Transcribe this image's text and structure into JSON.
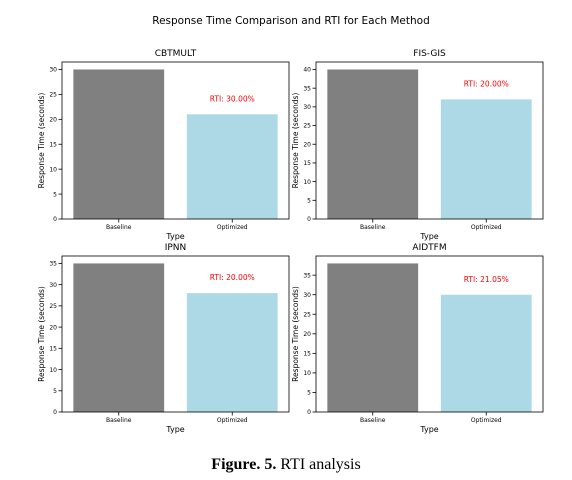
{
  "figure": {
    "suptitle": "Response Time Comparison and RTI for Each Method",
    "caption_label": "Figure. 5.",
    "caption_text": " RTI analysis"
  },
  "colors": {
    "baseline": "#808080",
    "optimized": "#add8e6",
    "annotation": "#ff0000"
  },
  "chart_data": [
    {
      "type": "bar",
      "title": "CBTMULT",
      "categories": [
        "Baseline",
        "Optimized"
      ],
      "values": [
        30,
        21
      ],
      "xlabel": "Type",
      "ylabel": "Response Time (seconds)",
      "ylim": [
        0,
        31.5
      ],
      "yticks": [
        0,
        5,
        10,
        15,
        20,
        25,
        30
      ],
      "annotation": "RTI: 30.00%",
      "grid": false
    },
    {
      "type": "bar",
      "title": "FIS-GIS",
      "categories": [
        "Baseline",
        "Optimized"
      ],
      "values": [
        40,
        32
      ],
      "xlabel": "Type",
      "ylabel": "Response Time (seconds)",
      "ylim": [
        0,
        42
      ],
      "yticks": [
        0,
        5,
        10,
        15,
        20,
        25,
        30,
        35,
        40
      ],
      "annotation": "RTI: 20.00%",
      "grid": false
    },
    {
      "type": "bar",
      "title": "IPNN",
      "categories": [
        "Baseline",
        "Optimized"
      ],
      "values": [
        35,
        28
      ],
      "xlabel": "Type",
      "ylabel": "Response Time (seconds)",
      "ylim": [
        0,
        36.75
      ],
      "yticks": [
        0,
        5,
        10,
        15,
        20,
        25,
        30,
        35
      ],
      "annotation": "RTI: 20.00%",
      "grid": false
    },
    {
      "type": "bar",
      "title": "AIDTFM",
      "categories": [
        "Baseline",
        "Optimized"
      ],
      "values": [
        38,
        30
      ],
      "xlabel": "Type",
      "ylabel": "Response Time (seconds)",
      "ylim": [
        0,
        39.9
      ],
      "yticks": [
        0,
        5,
        10,
        15,
        20,
        25,
        30,
        35
      ],
      "annotation": "RTI: 21.05%",
      "grid": false
    }
  ]
}
